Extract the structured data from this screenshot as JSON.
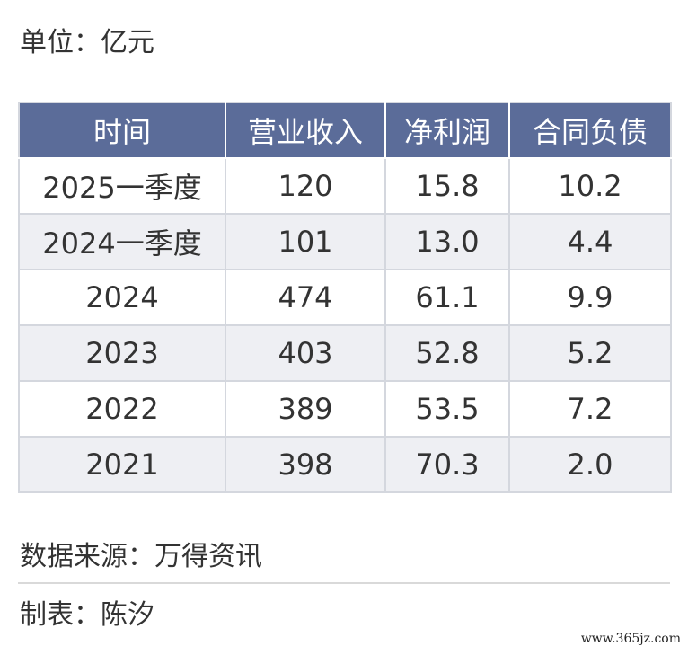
{
  "unit_label": "单位：亿元",
  "table": {
    "headers": [
      "时间",
      "营业收入",
      "净利润",
      "合同负债"
    ],
    "rows": [
      [
        "2025一季度",
        "120",
        "15.8",
        "10.2"
      ],
      [
        "2024一季度",
        "101",
        "13.0",
        "4.4"
      ],
      [
        "2024",
        "474",
        "61.1",
        "9.9"
      ],
      [
        "2023",
        "403",
        "52.8",
        "5.2"
      ],
      [
        "2022",
        "389",
        "53.5",
        "7.2"
      ],
      [
        "2021",
        "398",
        "70.3",
        "2.0"
      ]
    ]
  },
  "chart_data": {
    "type": "table",
    "unit": "亿元",
    "columns": [
      "时间",
      "营业收入",
      "净利润",
      "合同负债"
    ],
    "rows": [
      {
        "时间": "2025一季度",
        "营业收入": 120,
        "净利润": 15.8,
        "合同负债": 10.2
      },
      {
        "时间": "2024一季度",
        "营业收入": 101,
        "净利润": 13.0,
        "合同负债": 4.4
      },
      {
        "时间": "2024",
        "营业收入": 474,
        "净利润": 61.1,
        "合同负债": 9.9
      },
      {
        "时间": "2023",
        "营业收入": 403,
        "净利润": 52.8,
        "合同负债": 5.2
      },
      {
        "时间": "2022",
        "营业收入": 389,
        "净利润": 53.5,
        "合同负债": 7.2
      },
      {
        "时间": "2021",
        "营业收入": 398,
        "净利润": 70.3,
        "合同负债": 2.0
      }
    ]
  },
  "source_label": "数据来源：万得资讯",
  "author_label": "制表：陈汐",
  "watermark": "www.365jz.com",
  "colors": {
    "header_bg": "#5b6c99",
    "header_text": "#ffffff",
    "row_alt_bg": "#eeeff3",
    "grid": "#d4d7de"
  }
}
